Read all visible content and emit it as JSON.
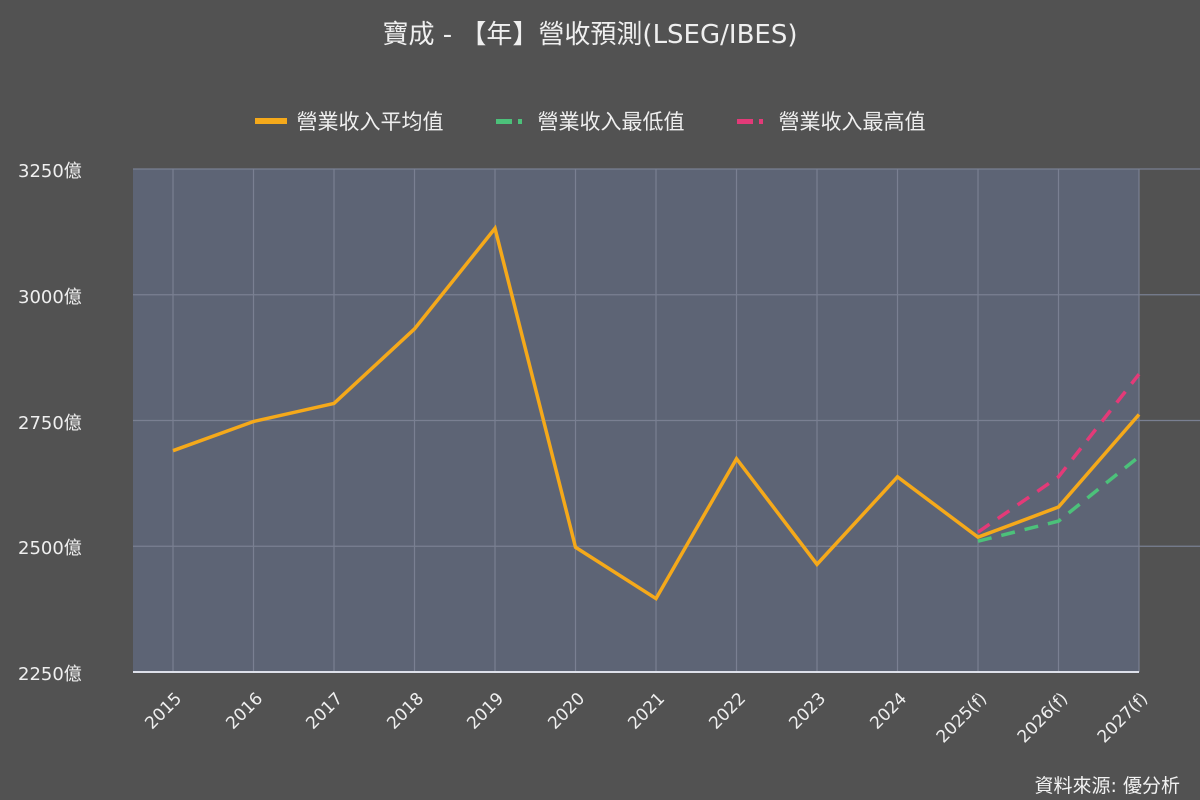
{
  "title": "寶成 - 【年】營收預測(LSEG/IBES)",
  "legend": [
    {
      "label": "營業收入平均值",
      "color": "#f5a91a",
      "style": "solid"
    },
    {
      "label": "營業收入最低值",
      "color": "#4cc17a",
      "style": "dashed"
    },
    {
      "label": "營業收入最高值",
      "color": "#e33a78",
      "style": "dashed"
    }
  ],
  "y_ticks": [
    "3250億",
    "3000億",
    "2750億",
    "2500億",
    "2250億"
  ],
  "x_ticks": [
    "2015",
    "2016",
    "2017",
    "2018",
    "2019",
    "2020",
    "2021",
    "2022",
    "2023",
    "2024",
    "2025(f)",
    "2026(f)",
    "2027(f)"
  ],
  "source": "資料來源: 優分析",
  "colors": {
    "background": "#525252",
    "plot_background": "#5d6475",
    "grid": "#7a8092",
    "axis": "#dde0ea"
  },
  "chart_data": {
    "type": "line",
    "title": "寶成 - 【年】營收預測(LSEG/IBES)",
    "xlabel": "",
    "ylabel": "",
    "unit": "億",
    "ylim": [
      2250,
      3250
    ],
    "grid": true,
    "legend_position": "top",
    "categories": [
      "2015",
      "2016",
      "2017",
      "2018",
      "2019",
      "2020",
      "2021",
      "2022",
      "2023",
      "2024",
      "2025(f)",
      "2026(f)",
      "2027(f)"
    ],
    "series": [
      {
        "name": "營業收入平均值",
        "color": "#f5a91a",
        "style": "solid",
        "values": [
          2690,
          2748,
          2784,
          2932,
          3132,
          2498,
          2396,
          2674,
          2464,
          2638,
          2518,
          2578,
          2762
        ]
      },
      {
        "name": "營業收入最低值",
        "color": "#4cc17a",
        "style": "dashed",
        "values": [
          null,
          null,
          null,
          null,
          null,
          null,
          null,
          null,
          null,
          null,
          2510,
          2550,
          2678
        ]
      },
      {
        "name": "營業收入最高值",
        "color": "#e33a78",
        "style": "dashed",
        "values": [
          null,
          null,
          null,
          null,
          null,
          null,
          null,
          null,
          null,
          null,
          2528,
          2638,
          2842
        ]
      }
    ],
    "annotations": [
      "資料來源: 優分析"
    ]
  }
}
